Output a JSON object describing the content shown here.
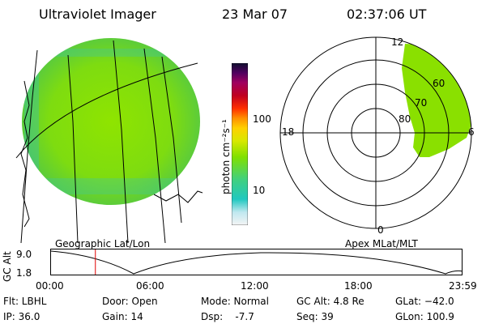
{
  "header": {
    "instrument": "Ultraviolet Imager",
    "date": "23 Mar 07",
    "time": "02:37:06 UT"
  },
  "colorbar": {
    "unit_label": "photon cm⁻²s⁻¹",
    "ticks": [
      "100",
      "10"
    ]
  },
  "left_panel": {
    "caption": "Geographic Lat/Lon"
  },
  "right_panel": {
    "caption": "Apex MLat/MLT",
    "mlt_labels": [
      "12",
      "18",
      "6",
      "0"
    ],
    "mlat_labels": [
      "60",
      "70",
      "80"
    ]
  },
  "timeline": {
    "ylabel": "GC Alt",
    "y_ticks": [
      "9.0",
      "1.8"
    ],
    "x_ticks": [
      "00:00",
      "06:00",
      "12:00",
      "18:00",
      "23:59"
    ],
    "marker_fraction": 0.108
  },
  "status": {
    "flt": "Flt: LBHL",
    "ip": "IP: 36.0",
    "door": "Door: Open",
    "gain": "Gain: 14",
    "mode": "Mode: Normal",
    "dsp": "Dsp:    -7.7",
    "gc_alt": "GC Alt: 4.8 Re",
    "seq": "Seq: 39",
    "glat": "GLat: −42.0",
    "glon": "GLon: 100.9"
  },
  "colors": {
    "aurora_green": "#7ee000",
    "aurora_yellowgreen": "#a8e800",
    "marker_red": "#e00000"
  }
}
